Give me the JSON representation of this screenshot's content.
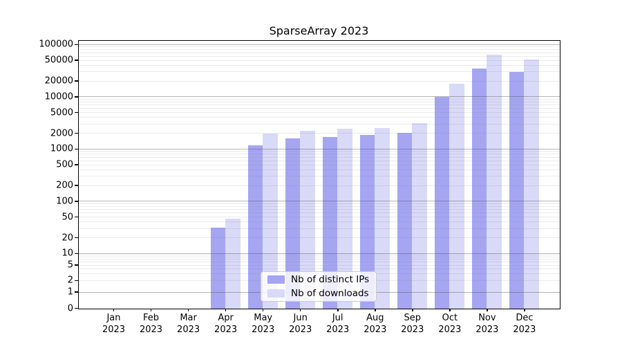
{
  "title": "SparseArray 2023",
  "chart_data": {
    "type": "bar",
    "title": "SparseArray 2023",
    "x_categories": [
      "Jan 2023",
      "Feb 2023",
      "Mar 2023",
      "Apr 2023",
      "May 2023",
      "Jun 2023",
      "Jul 2023",
      "Aug 2023",
      "Sep 2023",
      "Oct 2023",
      "Nov 2023",
      "Dec 2023"
    ],
    "series": [
      {
        "name": "Nb of distinct IPs",
        "color": "#a5a5f2",
        "values": [
          0,
          0,
          0,
          32,
          1200,
          1600,
          1700,
          1900,
          2100,
          10000,
          35000,
          30000
        ]
      },
      {
        "name": "Nb of downloads",
        "color": "#d9d9f8",
        "values": [
          0,
          0,
          0,
          47,
          2000,
          2300,
          2500,
          2600,
          3200,
          18000,
          65000,
          52000
        ]
      }
    ],
    "yscale": "symlog-base10",
    "ylim": [
      0,
      100000
    ],
    "y_tick_values": [
      0,
      1,
      2,
      5,
      10,
      20,
      50,
      100,
      200,
      500,
      1000,
      2000,
      5000,
      10000,
      20000,
      50000,
      100000
    ],
    "grid": {
      "axis": "y",
      "major": true,
      "minor": true,
      "minor_subs": [
        2,
        3,
        4,
        5,
        6,
        7,
        8,
        9
      ]
    },
    "legend": {
      "position": "lower-center",
      "labels": [
        "Nb of distinct IPs",
        "Nb of downloads"
      ]
    }
  },
  "colors": {
    "background": "#ffffff",
    "spine": "#000000",
    "major_grid": "#b5b5b5",
    "minor_grid": "#e9e9e9",
    "bar_distinct_ips": "#a5a5f2",
    "bar_downloads": "#d9d9f8",
    "legend_border": "#cccccc",
    "text": "#000000"
  }
}
